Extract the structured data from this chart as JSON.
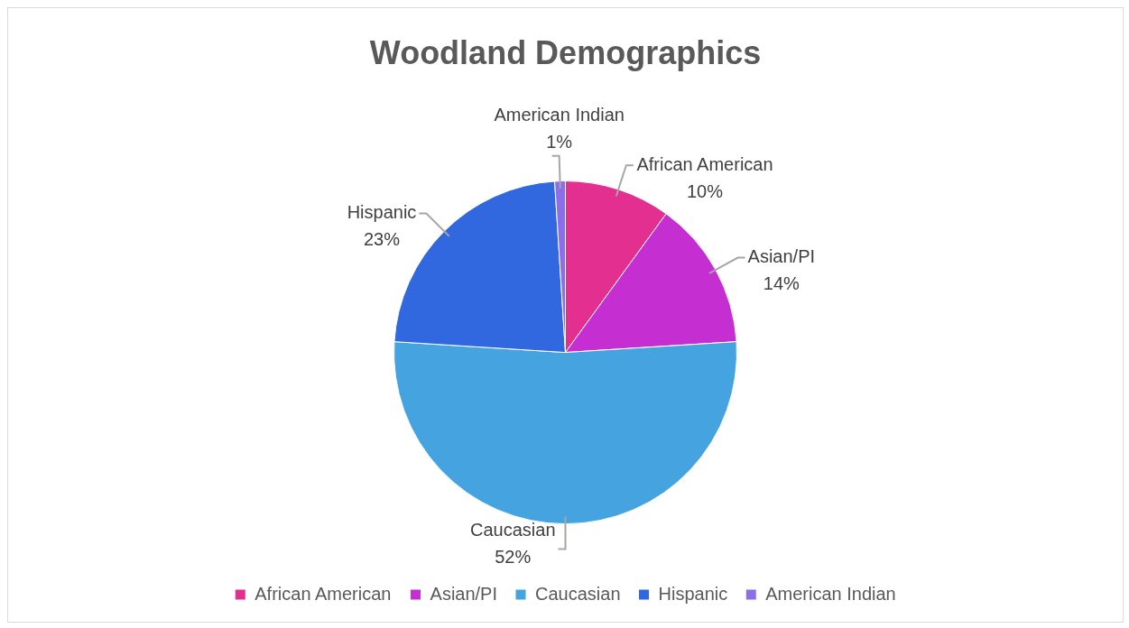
{
  "chart_data": {
    "type": "pie",
    "title": "Woodland Demographics",
    "categories": [
      "African American",
      "Asian/PI",
      "Caucasian",
      "Hispanic",
      "American Indian"
    ],
    "values": [
      10,
      14,
      52,
      23,
      1
    ],
    "value_labels": [
      "10%",
      "14%",
      "52%",
      "23%",
      "1%"
    ],
    "colors": [
      "#e32f8f",
      "#c52fd2",
      "#45a3e0",
      "#3168e0",
      "#8c6ee8"
    ],
    "legend": "bottom"
  }
}
